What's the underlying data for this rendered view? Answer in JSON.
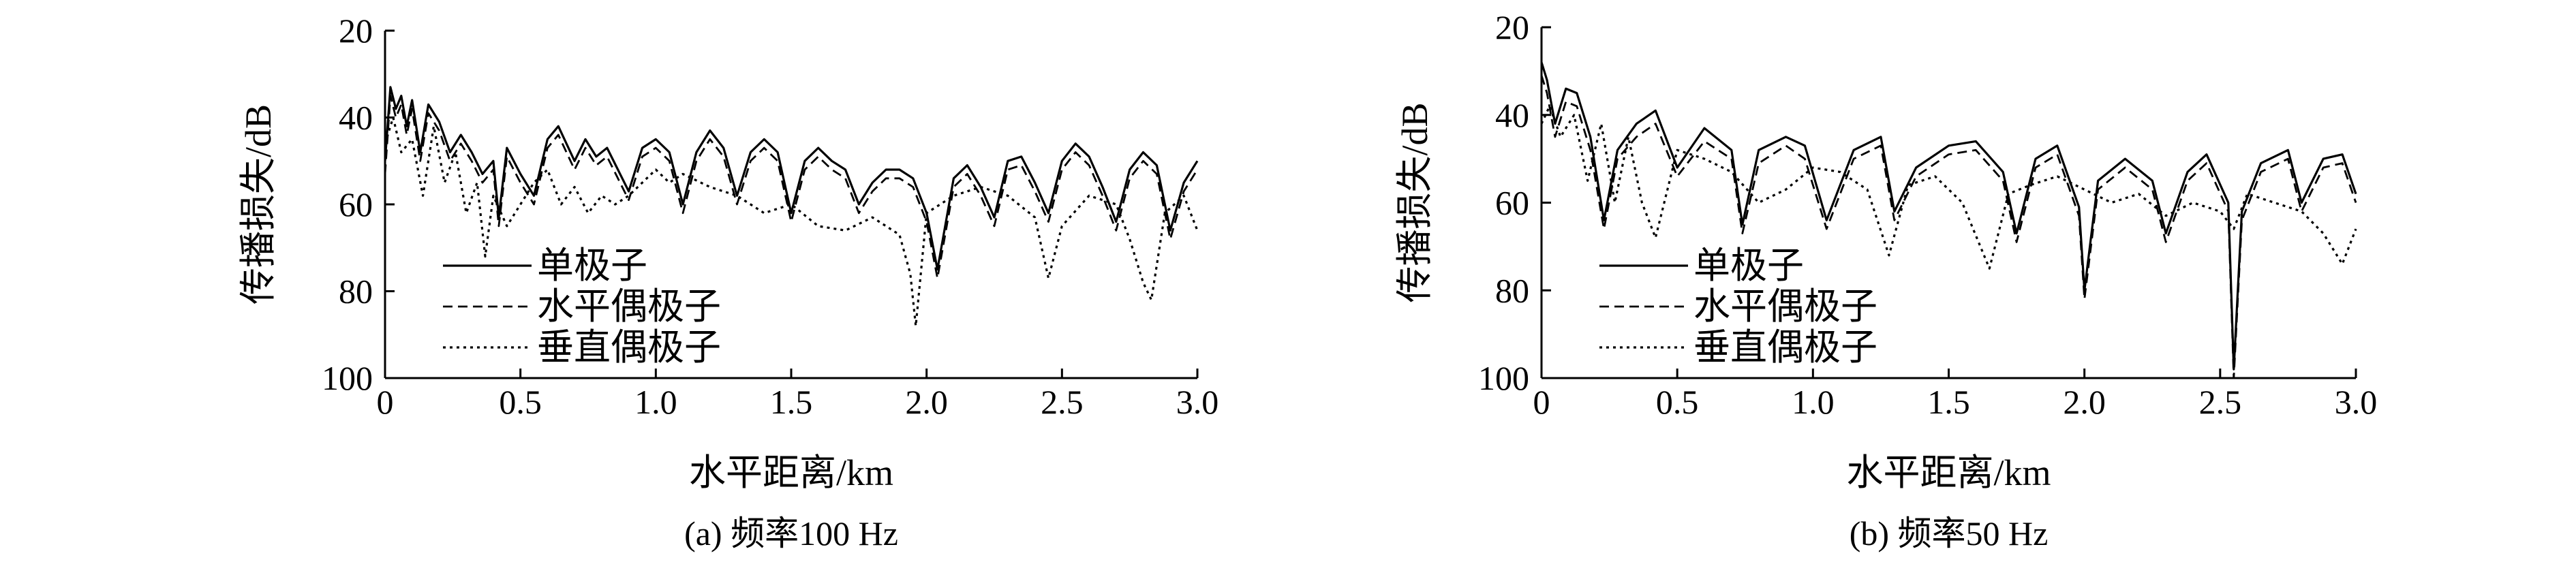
{
  "chart_data": [
    {
      "type": "line",
      "caption": "(a) 频率100 Hz",
      "xlabel": "水平距离/km",
      "ylabel": "传播损失/dB",
      "xlim": [
        0,
        3.0
      ],
      "ylim": [
        100,
        20
      ],
      "y_inverted": true,
      "xticks": [
        "0",
        "0.5",
        "1.0",
        "1.5",
        "2.0",
        "2.5",
        "3.0"
      ],
      "yticks": [
        "20",
        "40",
        "60",
        "80",
        "100"
      ],
      "grid": false,
      "legend_position": "lower-left",
      "series": [
        {
          "name": "单极子",
          "style": "solid",
          "x": [
            0,
            0.02,
            0.04,
            0.06,
            0.08,
            0.1,
            0.13,
            0.16,
            0.2,
            0.24,
            0.28,
            0.32,
            0.36,
            0.4,
            0.42,
            0.45,
            0.5,
            0.55,
            0.6,
            0.64,
            0.7,
            0.74,
            0.78,
            0.82,
            0.86,
            0.9,
            0.95,
            1.0,
            1.05,
            1.1,
            1.15,
            1.2,
            1.25,
            1.3,
            1.35,
            1.4,
            1.45,
            1.5,
            1.55,
            1.6,
            1.65,
            1.7,
            1.75,
            1.8,
            1.85,
            1.9,
            1.95,
            2.0,
            2.04,
            2.1,
            2.15,
            2.2,
            2.25,
            2.3,
            2.35,
            2.4,
            2.45,
            2.5,
            2.55,
            2.6,
            2.65,
            2.7,
            2.75,
            2.8,
            2.85,
            2.9,
            2.95,
            3.0
          ],
          "y": [
            50,
            33,
            38,
            35,
            42,
            36,
            48,
            37,
            41,
            48,
            44,
            48,
            53,
            50,
            63,
            47,
            53,
            58,
            45,
            42,
            50,
            45,
            49,
            47,
            52,
            57,
            47,
            45,
            48,
            60,
            48,
            43,
            47,
            58,
            48,
            45,
            48,
            62,
            50,
            47,
            50,
            52,
            60,
            55,
            52,
            52,
            54,
            62,
            75,
            54,
            51,
            56,
            63,
            50,
            49,
            55,
            62,
            50,
            46,
            49,
            56,
            64,
            52,
            48,
            51,
            66,
            55,
            50
          ]
        },
        {
          "name": "水平偶极子",
          "style": "dashed",
          "x": [
            0,
            0.02,
            0.04,
            0.06,
            0.08,
            0.1,
            0.13,
            0.16,
            0.2,
            0.24,
            0.28,
            0.32,
            0.36,
            0.4,
            0.42,
            0.45,
            0.5,
            0.55,
            0.6,
            0.64,
            0.7,
            0.74,
            0.78,
            0.82,
            0.86,
            0.9,
            0.95,
            1.0,
            1.05,
            1.1,
            1.15,
            1.2,
            1.25,
            1.3,
            1.35,
            1.4,
            1.45,
            1.5,
            1.55,
            1.6,
            1.65,
            1.7,
            1.75,
            1.8,
            1.85,
            1.9,
            1.95,
            2.0,
            2.04,
            2.1,
            2.15,
            2.2,
            2.25,
            2.3,
            2.35,
            2.4,
            2.45,
            2.5,
            2.55,
            2.6,
            2.65,
            2.7,
            2.75,
            2.8,
            2.85,
            2.9,
            2.95,
            3.0
          ],
          "y": [
            53,
            35,
            40,
            37,
            44,
            38,
            50,
            39,
            43,
            50,
            46,
            50,
            55,
            52,
            65,
            49,
            55,
            60,
            47,
            44,
            52,
            47,
            51,
            49,
            54,
            59,
            49,
            47,
            50,
            62,
            50,
            45,
            49,
            60,
            50,
            47,
            50,
            64,
            52,
            49,
            52,
            54,
            62,
            57,
            54,
            54,
            56,
            64,
            77,
            56,
            53,
            58,
            65,
            52,
            51,
            57,
            64,
            52,
            48,
            51,
            58,
            66,
            54,
            50,
            53,
            68,
            57,
            52
          ]
        },
        {
          "name": "垂直偶极子",
          "style": "dotted",
          "x": [
            0,
            0.03,
            0.06,
            0.1,
            0.14,
            0.18,
            0.22,
            0.26,
            0.3,
            0.34,
            0.37,
            0.4,
            0.45,
            0.5,
            0.55,
            0.6,
            0.65,
            0.7,
            0.75,
            0.8,
            0.85,
            0.9,
            0.95,
            1.0,
            1.05,
            1.1,
            1.2,
            1.3,
            1.4,
            1.5,
            1.6,
            1.7,
            1.8,
            1.9,
            1.94,
            1.96,
            2.0,
            2.1,
            2.2,
            2.3,
            2.4,
            2.45,
            2.5,
            2.6,
            2.7,
            2.75,
            2.8,
            2.83,
            2.88,
            2.95,
            3.0
          ],
          "y": [
            46,
            40,
            48,
            45,
            58,
            42,
            55,
            48,
            62,
            55,
            72,
            58,
            65,
            60,
            55,
            52,
            60,
            56,
            62,
            58,
            60,
            58,
            55,
            52,
            55,
            53,
            56,
            58,
            62,
            60,
            65,
            66,
            63,
            67,
            76,
            88,
            62,
            58,
            56,
            58,
            63,
            77,
            65,
            58,
            60,
            68,
            78,
            82,
            62,
            58,
            66
          ]
        }
      ]
    },
    {
      "type": "line",
      "caption": "(b) 频率50 Hz",
      "xlabel": "水平距离/km",
      "ylabel": "传播损失/dB",
      "xlim": [
        0,
        3.0
      ],
      "ylim": [
        100,
        20
      ],
      "y_inverted": true,
      "xticks": [
        "0",
        "0.5",
        "1.0",
        "1.5",
        "2.0",
        "2.5",
        "3.0"
      ],
      "yticks": [
        "20",
        "40",
        "60",
        "80",
        "100"
      ],
      "grid": false,
      "legend_position": "lower-left",
      "series": [
        {
          "name": "单极子",
          "style": "solid",
          "x": [
            0,
            0.02,
            0.05,
            0.09,
            0.13,
            0.18,
            0.23,
            0.28,
            0.35,
            0.42,
            0.5,
            0.6,
            0.7,
            0.74,
            0.8,
            0.9,
            0.97,
            1.05,
            1.15,
            1.25,
            1.3,
            1.38,
            1.5,
            1.6,
            1.7,
            1.75,
            1.82,
            1.9,
            1.98,
            2.0,
            2.05,
            2.15,
            2.25,
            2.3,
            2.38,
            2.45,
            2.53,
            2.55,
            2.58,
            2.65,
            2.75,
            2.8,
            2.88,
            2.95,
            3.0
          ],
          "y": [
            28,
            32,
            42,
            34,
            35,
            45,
            64,
            48,
            42,
            39,
            52,
            43,
            48,
            65,
            48,
            45,
            47,
            64,
            48,
            45,
            62,
            52,
            47,
            46,
            53,
            67,
            50,
            47,
            61,
            80,
            55,
            50,
            55,
            67,
            53,
            49,
            60,
            98,
            62,
            51,
            48,
            60,
            50,
            49,
            58
          ]
        },
        {
          "name": "水平偶极子",
          "style": "dashed",
          "x": [
            0,
            0.02,
            0.05,
            0.09,
            0.13,
            0.18,
            0.23,
            0.28,
            0.35,
            0.42,
            0.5,
            0.6,
            0.7,
            0.74,
            0.8,
            0.9,
            0.97,
            1.05,
            1.15,
            1.25,
            1.3,
            1.38,
            1.5,
            1.6,
            1.7,
            1.75,
            1.82,
            1.9,
            1.98,
            2.0,
            2.05,
            2.15,
            2.25,
            2.3,
            2.38,
            2.45,
            2.53,
            2.55,
            2.58,
            2.65,
            2.75,
            2.8,
            2.88,
            2.95,
            3.0
          ],
          "y": [
            31,
            35,
            45,
            37,
            38,
            48,
            66,
            50,
            45,
            42,
            54,
            46,
            50,
            67,
            51,
            47,
            50,
            66,
            50,
            47,
            64,
            54,
            49,
            48,
            55,
            69,
            52,
            49,
            63,
            82,
            57,
            52,
            57,
            69,
            55,
            51,
            62,
            100,
            64,
            53,
            50,
            62,
            52,
            51,
            60
          ]
        },
        {
          "name": "垂直偶极子",
          "style": "dotted",
          "x": [
            0,
            0.03,
            0.07,
            0.12,
            0.17,
            0.22,
            0.27,
            0.32,
            0.37,
            0.42,
            0.5,
            0.6,
            0.7,
            0.8,
            0.9,
            1.0,
            1.1,
            1.2,
            1.28,
            1.35,
            1.45,
            1.55,
            1.65,
            1.72,
            1.8,
            1.9,
            2.0,
            2.1,
            2.2,
            2.3,
            2.4,
            2.5,
            2.55,
            2.6,
            2.7,
            2.8,
            2.88,
            2.95,
            3.0
          ],
          "y": [
            42,
            38,
            45,
            40,
            55,
            42,
            60,
            45,
            60,
            68,
            48,
            50,
            53,
            60,
            57,
            52,
            53,
            57,
            72,
            56,
            54,
            60,
            75,
            58,
            56,
            54,
            57,
            60,
            58,
            63,
            60,
            62,
            66,
            58,
            60,
            62,
            67,
            74,
            66
          ]
        }
      ]
    }
  ]
}
